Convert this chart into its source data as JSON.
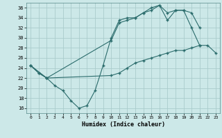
{
  "xlabel": "Humidex (Indice chaleur)",
  "bg_color": "#cce8e8",
  "grid_color": "#aacccc",
  "line_color": "#2a6b6b",
  "xlim": [
    -0.5,
    23.5
  ],
  "ylim": [
    15,
    37
  ],
  "yticks": [
    16,
    18,
    20,
    22,
    24,
    26,
    28,
    30,
    32,
    34,
    36
  ],
  "xticks": [
    0,
    1,
    2,
    3,
    4,
    5,
    6,
    7,
    8,
    9,
    10,
    11,
    12,
    13,
    14,
    15,
    16,
    17,
    18,
    19,
    20,
    21,
    22,
    23
  ],
  "line1_x": [
    0,
    1,
    2,
    3,
    4,
    5,
    6,
    7,
    8,
    9,
    10,
    11,
    12,
    13,
    14,
    15,
    16,
    17,
    18,
    19,
    20,
    21
  ],
  "line1_y": [
    24.5,
    23.0,
    22.0,
    20.5,
    19.5,
    17.5,
    16.0,
    16.5,
    19.5,
    24.5,
    30.0,
    33.5,
    34.0,
    34.0,
    35.0,
    36.0,
    36.5,
    35.0,
    35.5,
    35.5,
    32.0,
    28.5
  ],
  "line2_x": [
    0,
    1,
    2,
    10,
    11,
    12,
    13,
    14,
    15,
    16,
    17,
    18,
    19,
    20,
    21
  ],
  "line2_y": [
    24.5,
    23.0,
    22.0,
    29.5,
    33.0,
    33.5,
    34.0,
    35.0,
    35.5,
    36.5,
    33.5,
    35.5,
    35.5,
    35.0,
    32.0
  ],
  "line3_x": [
    0,
    2,
    10,
    11,
    12,
    13,
    14,
    15,
    16,
    17,
    18,
    19,
    20,
    21,
    22,
    23
  ],
  "line3_y": [
    24.5,
    22.0,
    22.5,
    23.0,
    24.0,
    25.0,
    25.5,
    26.0,
    26.5,
    27.0,
    27.5,
    27.5,
    28.0,
    28.5,
    28.5,
    27.0
  ]
}
